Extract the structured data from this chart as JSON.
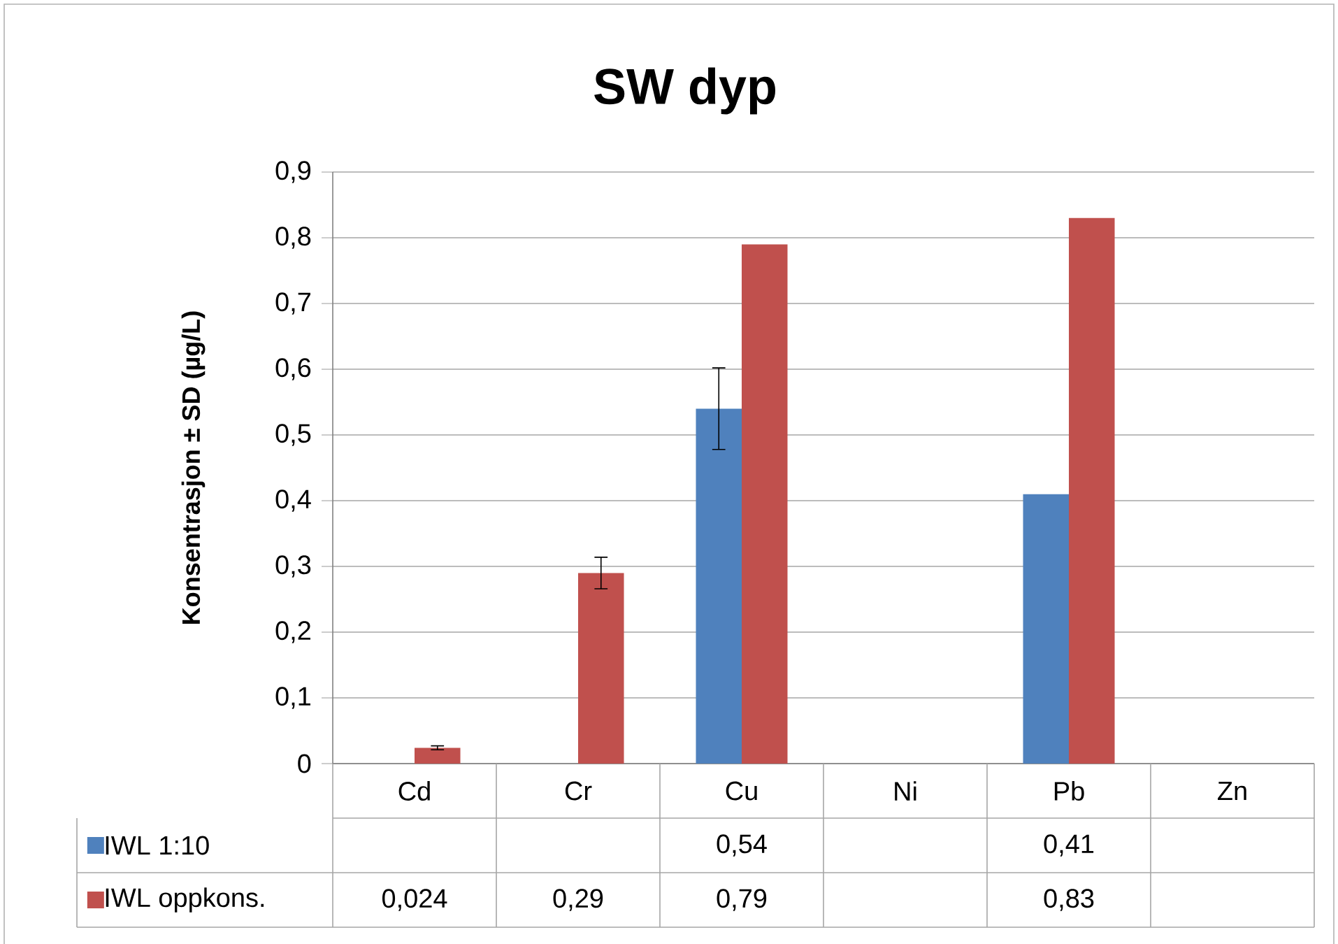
{
  "chart_data": {
    "type": "bar",
    "title": "SW dyp",
    "ylabel": "Konsentrasjon ± SD (µg/L)",
    "categories": [
      "Cd",
      "Cr",
      "Cu",
      "Ni",
      "Pb",
      "Zn"
    ],
    "series": [
      {
        "name": "IWL 1:10",
        "color": "#4f81bd",
        "values": [
          null,
          null,
          0.54,
          null,
          0.41,
          null
        ],
        "errors": [
          null,
          null,
          0.062,
          null,
          null,
          null
        ],
        "value_labels": [
          null,
          null,
          "0,54",
          null,
          "0,41",
          null
        ]
      },
      {
        "name": "IWL oppkons.",
        "color": "#c0504d",
        "values": [
          0.024,
          0.29,
          0.79,
          null,
          0.83,
          null
        ],
        "errors": [
          0.003,
          0.024,
          null,
          null,
          null,
          null
        ],
        "value_labels": [
          "0,024",
          "0,29",
          "0,79",
          null,
          "0,83",
          null
        ]
      }
    ],
    "ylim": [
      0,
      0.9
    ],
    "yticks": [
      0,
      {
        "value": 0.1,
        "label": "0,1"
      },
      {
        "value": 0.2,
        "label": "0,2"
      },
      {
        "value": 0.3,
        "label": "0,3"
      },
      {
        "value": 0.4,
        "label": "0,4"
      },
      {
        "value": 0.5,
        "label": "0,5"
      },
      {
        "value": 0.6,
        "label": "0,6"
      },
      {
        "value": 0.7,
        "label": "0,7"
      },
      {
        "value": 0.8,
        "label": "0,8"
      },
      {
        "value": 0.9,
        "label": "0,9"
      }
    ],
    "grid": "y",
    "legend": "bottom"
  }
}
